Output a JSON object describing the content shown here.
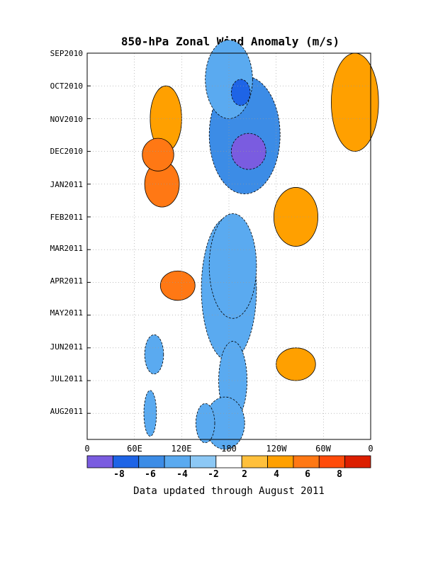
{
  "chart_data": {
    "type": "heatmap",
    "title": "850-hPa Zonal Wind Anomaly (m/s)",
    "y_tick_labels": [
      "SEP2010",
      "OCT2010",
      "NOV2010",
      "DEC2010",
      "JAN2011",
      "FEB2011",
      "MAR2011",
      "APR2011",
      "MAY2011",
      "JUN2011",
      "JUL2011",
      "AUG2011"
    ],
    "x_tick_labels": [
      "0",
      "60E",
      "120E",
      "180",
      "120W",
      "60W",
      "0"
    ],
    "colorbar": {
      "tick_labels": [
        "-8",
        "-6",
        "-4",
        "-2",
        "2",
        "4",
        "6",
        "8"
      ],
      "colors": [
        "#7a5ce0",
        "#1e64e6",
        "#3c8ce6",
        "#5aaaf0",
        "#8cc8f5",
        "#ffffff",
        "#ffc03c",
        "#ffa000",
        "#ff7814",
        "#ff4b0a",
        "#dc1e00"
      ]
    },
    "note": "Data updated through August 2011",
    "features": [
      {
        "lon": 205,
        "month": 3.0,
        "value": -9,
        "rx": 22,
        "ry": 0.55
      },
      {
        "lon": 195,
        "month": 1.2,
        "value": -8,
        "rx": 12,
        "ry": 0.4
      },
      {
        "lon": 200,
        "month": 2.5,
        "value": -5,
        "rx": 45,
        "ry": 1.8
      },
      {
        "lon": 180,
        "month": 0.8,
        "value": -4,
        "rx": 30,
        "ry": 1.2
      },
      {
        "lon": 185,
        "month": 6.5,
        "value": -4,
        "rx": 30,
        "ry": 1.6
      },
      {
        "lon": 180,
        "month": 7.2,
        "value": -3,
        "rx": 35,
        "ry": 2.2
      },
      {
        "lon": 185,
        "month": 10.0,
        "value": -3,
        "rx": 18,
        "ry": 1.2
      },
      {
        "lon": 175,
        "month": 11.3,
        "value": -3,
        "rx": 25,
        "ry": 0.8
      },
      {
        "lon": 150,
        "month": 11.3,
        "value": -3,
        "rx": 12,
        "ry": 0.6
      },
      {
        "lon": 80,
        "month": 11.0,
        "value": -3,
        "rx": 8,
        "ry": 0.7
      },
      {
        "lon": 85,
        "month": 9.2,
        "value": -3,
        "rx": 12,
        "ry": 0.6
      },
      {
        "lon": 100,
        "month": 2.0,
        "value": 5,
        "rx": 20,
        "ry": 1.0
      },
      {
        "lon": 90,
        "month": 3.1,
        "value": 7,
        "rx": 20,
        "ry": 0.5
      },
      {
        "lon": 95,
        "month": 4.0,
        "value": 7,
        "rx": 22,
        "ry": 0.7
      },
      {
        "lon": 115,
        "month": 7.1,
        "value": 6,
        "rx": 22,
        "ry": 0.45
      },
      {
        "lon": 340,
        "month": 1.5,
        "value": 4,
        "rx": 30,
        "ry": 1.5
      },
      {
        "lon": 265,
        "month": 5.0,
        "value": 4,
        "rx": 28,
        "ry": 0.9
      },
      {
        "lon": 265,
        "month": 9.5,
        "value": 4,
        "rx": 25,
        "ry": 0.5
      }
    ]
  }
}
